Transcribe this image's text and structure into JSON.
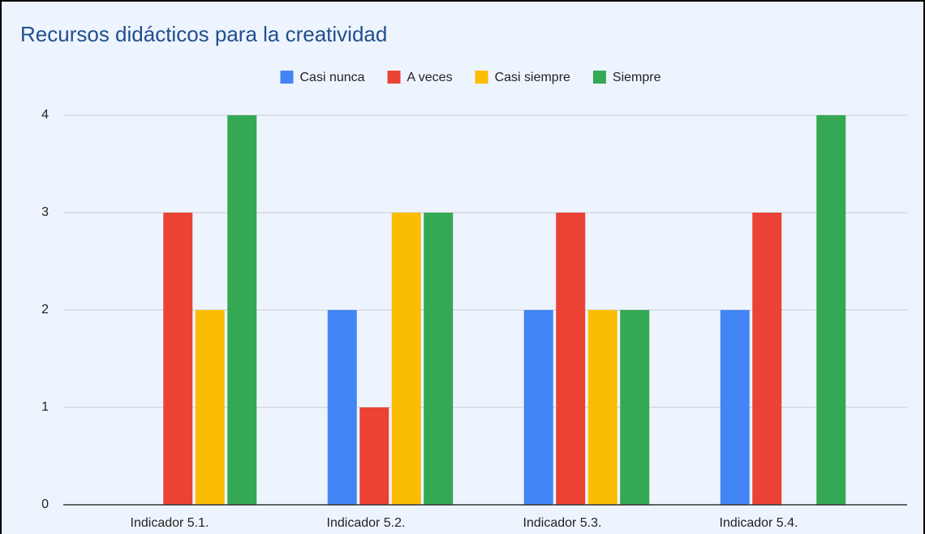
{
  "chart_data": {
    "type": "bar",
    "title": "Recursos didácticos para la creatividad",
    "categories": [
      "Indicador 5.1.",
      "Indicador 5.2.",
      "Indicador 5.3.",
      "Indicador 5.4."
    ],
    "series": [
      {
        "name": "Casi nunca",
        "color": "#4285f4",
        "values": [
          0,
          2,
          2,
          2
        ]
      },
      {
        "name": "A veces",
        "color": "#ea4335",
        "values": [
          3,
          1,
          3,
          3
        ]
      },
      {
        "name": "Casi siempre",
        "color": "#fbbc04",
        "values": [
          2,
          3,
          2,
          0
        ]
      },
      {
        "name": "Siempre",
        "color": "#34a853",
        "values": [
          4,
          3,
          2,
          4
        ]
      }
    ],
    "ylim": [
      0,
      4
    ],
    "yticks": [
      0,
      1,
      2,
      3,
      4
    ],
    "grid": true,
    "legend": "top"
  }
}
